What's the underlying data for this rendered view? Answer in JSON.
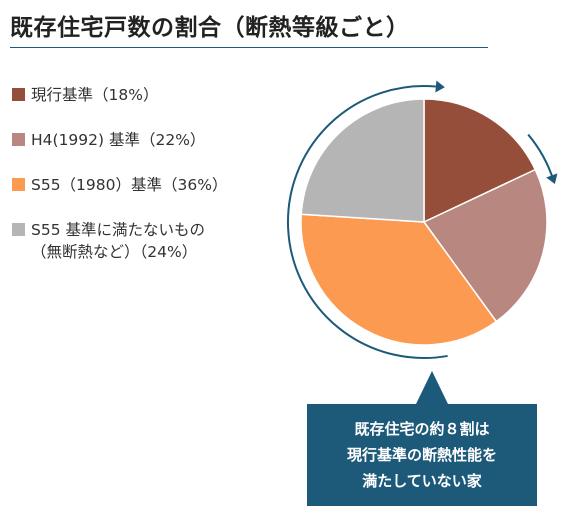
{
  "title": "既存住宅戸数の割合（断熱等級ごと）",
  "chart_data": {
    "type": "pie",
    "title": "既存住宅戸数の割合（断熱等級ごと）",
    "slices": [
      {
        "label_lines": [
          "現行基準（18%）"
        ],
        "value": 18,
        "color": "#944e3a"
      },
      {
        "label_lines": [
          "H4(1992) 基準（22%）"
        ],
        "value": 22,
        "color": "#b88780"
      },
      {
        "label_lines": [
          "S55（1980）基準（36%）"
        ],
        "value": 36,
        "color": "#fb9a50"
      },
      {
        "label_lines": [
          "S55 基準に満たないもの",
          "（無断熱など）（24%）"
        ],
        "value": 24,
        "color": "#b5b5b5"
      }
    ],
    "start": "12 o'clock",
    "direction": "clockwise",
    "legend_position": "left"
  },
  "callout": {
    "lines": [
      "既存住宅の約８割は",
      "現行基準の断熱性能を",
      "満たしていない家"
    ],
    "color": "#1d5a7a"
  },
  "arrow_color": "#1d5a7a"
}
